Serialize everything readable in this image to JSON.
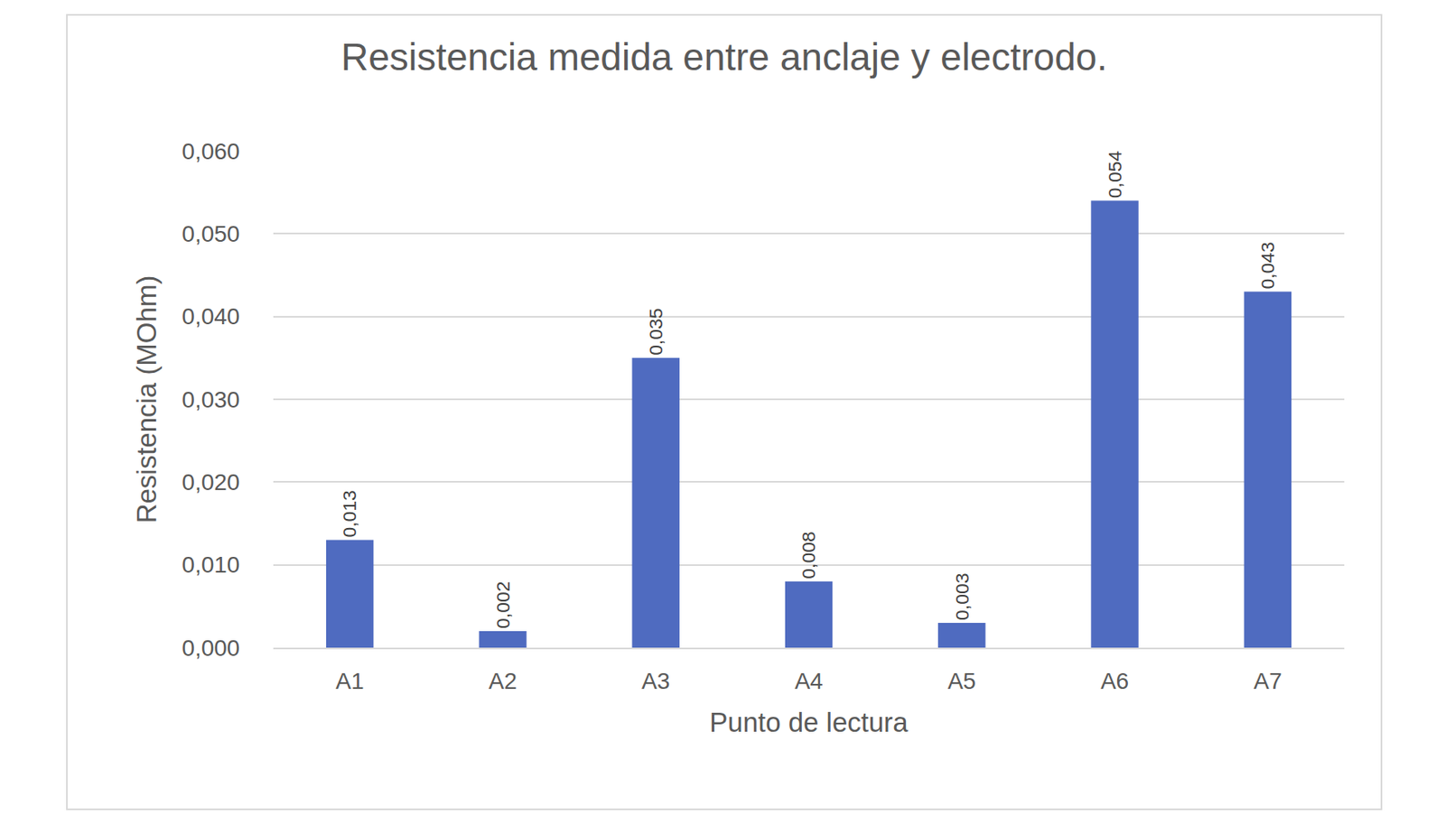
{
  "chart_data": {
    "type": "bar",
    "title": "Resistencia medida entre anclaje y electrodo.",
    "x_label": "Punto de lectura",
    "y_label": "Resistencia (MOhm)",
    "categories": [
      "A1",
      "A2",
      "A3",
      "A4",
      "A5",
      "A6",
      "A7"
    ],
    "values": [
      0.013,
      0.002,
      0.035,
      0.008,
      0.003,
      0.054,
      0.043
    ],
    "value_labels": [
      "0,013",
      "0,002",
      "0,035",
      "0,008",
      "0,003",
      "0,054",
      "0,043"
    ],
    "color": "#4f6bc0",
    "ylim": [
      0,
      0.06
    ],
    "yticks": [
      {
        "value": 0,
        "label": "0,000"
      },
      {
        "value": 0.01,
        "label": "0,010"
      },
      {
        "value": 0.02,
        "label": "0,020"
      },
      {
        "value": 0.03,
        "label": "0,030"
      },
      {
        "value": 0.04,
        "label": "0,040"
      },
      {
        "value": 0.05,
        "label": "0,050"
      },
      {
        "value": 0.06,
        "label": "0,060"
      }
    ],
    "grid": true,
    "data_labels": true
  }
}
